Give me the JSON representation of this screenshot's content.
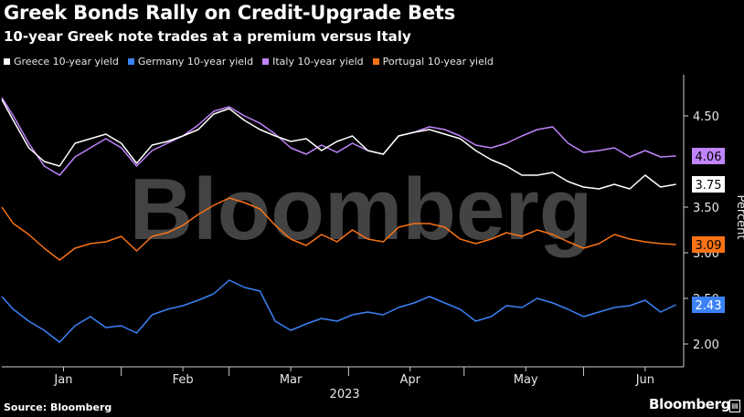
{
  "title": "Greek Bonds Rally on Credit-Upgrade Bets",
  "subtitle": "10-year Greek note trades at a premium versus Italy",
  "source": "Source: Bloomberg",
  "brand": "Bloomberg",
  "watermark": "Bloomberg",
  "chart_data": {
    "type": "line",
    "ylabel": "Percent",
    "xlabel": "2023",
    "ylim": [
      1.75,
      4.95
    ],
    "yticks": [
      "2.00",
      "2.50",
      "3.00",
      "3.50",
      "4.50"
    ],
    "ytick_values": [
      2.0,
      2.5,
      3.0,
      3.5,
      4.5
    ],
    "xticks": [
      "Jan",
      "Feb",
      "Mar",
      "Apr",
      "May",
      "Jun"
    ],
    "xtick_days": [
      17,
      48,
      76,
      107,
      137,
      168
    ],
    "x_range_days": [
      1,
      178
    ],
    "grid": false,
    "legend_position": "top",
    "series": [
      {
        "name": "Greece 10-year yield",
        "color": "#ffffff",
        "last": "3.75",
        "x": [
          1,
          4,
          8,
          12,
          16,
          20,
          24,
          28,
          32,
          36,
          40,
          44,
          48,
          52,
          56,
          60,
          64,
          68,
          72,
          76,
          80,
          84,
          88,
          92,
          96,
          100,
          104,
          108,
          112,
          116,
          120,
          124,
          128,
          132,
          136,
          140,
          144,
          148,
          152,
          156,
          160,
          164,
          168,
          172,
          176
        ],
        "y": [
          4.68,
          4.45,
          4.15,
          4.0,
          3.95,
          4.2,
          4.25,
          4.3,
          4.2,
          3.98,
          4.18,
          4.22,
          4.28,
          4.35,
          4.52,
          4.58,
          4.45,
          4.35,
          4.28,
          4.22,
          4.25,
          4.12,
          4.22,
          4.28,
          4.12,
          4.08,
          4.28,
          4.32,
          4.35,
          4.3,
          4.25,
          4.12,
          4.02,
          3.95,
          3.85,
          3.85,
          3.88,
          3.78,
          3.72,
          3.7,
          3.75,
          3.7,
          3.85,
          3.72,
          3.75
        ]
      },
      {
        "name": "Germany 10-year yield",
        "color": "#3b82f6",
        "last": "2.43",
        "x": [
          1,
          4,
          8,
          12,
          16,
          20,
          24,
          28,
          32,
          36,
          40,
          44,
          48,
          52,
          56,
          60,
          64,
          68,
          72,
          76,
          80,
          84,
          88,
          92,
          96,
          100,
          104,
          108,
          112,
          116,
          120,
          124,
          128,
          132,
          136,
          140,
          144,
          148,
          152,
          156,
          160,
          164,
          168,
          172,
          176
        ],
        "y": [
          2.52,
          2.38,
          2.25,
          2.15,
          2.02,
          2.2,
          2.3,
          2.18,
          2.2,
          2.12,
          2.32,
          2.38,
          2.42,
          2.48,
          2.55,
          2.7,
          2.62,
          2.58,
          2.25,
          2.15,
          2.22,
          2.28,
          2.25,
          2.32,
          2.35,
          2.32,
          2.4,
          2.45,
          2.52,
          2.45,
          2.38,
          2.25,
          2.3,
          2.42,
          2.4,
          2.5,
          2.45,
          2.38,
          2.3,
          2.35,
          2.4,
          2.42,
          2.48,
          2.35,
          2.43
        ]
      },
      {
        "name": "Italy 10-year yield",
        "color": "#c084fc",
        "last": "4.06",
        "x": [
          1,
          4,
          8,
          12,
          16,
          20,
          24,
          28,
          32,
          36,
          40,
          44,
          48,
          52,
          56,
          60,
          64,
          68,
          72,
          76,
          80,
          84,
          88,
          92,
          96,
          100,
          104,
          108,
          112,
          116,
          120,
          124,
          128,
          132,
          136,
          140,
          144,
          148,
          152,
          156,
          160,
          164,
          168,
          172,
          176
        ],
        "y": [
          4.7,
          4.5,
          4.2,
          3.95,
          3.85,
          4.05,
          4.15,
          4.25,
          4.15,
          3.95,
          4.12,
          4.2,
          4.28,
          4.4,
          4.55,
          4.6,
          4.5,
          4.42,
          4.3,
          4.15,
          4.08,
          4.18,
          4.1,
          4.2,
          4.12,
          4.08,
          4.28,
          4.32,
          4.38,
          4.35,
          4.28,
          4.18,
          4.15,
          4.2,
          4.28,
          4.35,
          4.38,
          4.2,
          4.1,
          4.12,
          4.15,
          4.05,
          4.12,
          4.05,
          4.06
        ]
      },
      {
        "name": "Portugal 10-year yield",
        "color": "#f97316",
        "last": "3.09",
        "x": [
          1,
          4,
          8,
          12,
          16,
          20,
          24,
          28,
          32,
          36,
          40,
          44,
          48,
          52,
          56,
          60,
          64,
          68,
          72,
          76,
          80,
          84,
          88,
          92,
          96,
          100,
          104,
          108,
          112,
          116,
          120,
          124,
          128,
          132,
          136,
          140,
          144,
          148,
          152,
          156,
          160,
          164,
          168,
          172,
          176
        ],
        "y": [
          3.5,
          3.32,
          3.2,
          3.05,
          2.92,
          3.05,
          3.1,
          3.12,
          3.18,
          3.02,
          3.18,
          3.22,
          3.3,
          3.42,
          3.52,
          3.6,
          3.55,
          3.48,
          3.3,
          3.15,
          3.08,
          3.2,
          3.12,
          3.25,
          3.15,
          3.12,
          3.28,
          3.32,
          3.32,
          3.28,
          3.15,
          3.1,
          3.15,
          3.22,
          3.18,
          3.25,
          3.2,
          3.12,
          3.05,
          3.1,
          3.2,
          3.15,
          3.12,
          3.1,
          3.09
        ]
      }
    ]
  }
}
